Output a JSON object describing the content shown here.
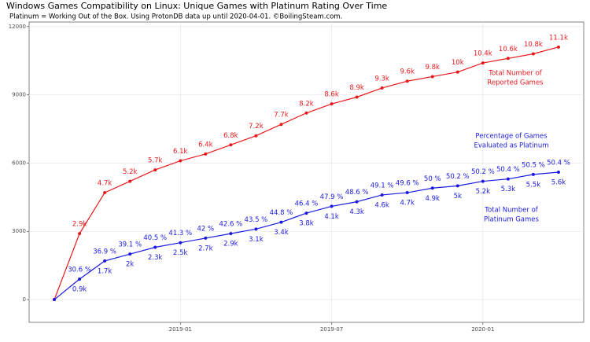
{
  "chart_data": {
    "type": "line",
    "title": "Windows Games Compatibility on Linux: Unique Games with Platinum Rating Over Time",
    "subtitle": "Platinum = Working Out of the Box. Using ProtonDB data up until 2020-04-01. ©BoilingSteam.com.",
    "x": [
      "2018-08",
      "2018-09",
      "2018-10",
      "2018-11",
      "2018-12",
      "2019-01",
      "2019-02",
      "2019-03",
      "2019-04",
      "2019-05",
      "2019-06",
      "2019-07",
      "2019-08",
      "2019-09",
      "2019-10",
      "2019-11",
      "2019-12",
      "2020-01",
      "2020-02",
      "2020-03",
      "2020-04"
    ],
    "xlim": [
      "2018-07",
      "2020-05"
    ],
    "xticks": [
      "2019-01",
      "2019-07",
      "2020-01"
    ],
    "ylim": [
      -1000,
      12200
    ],
    "yticks": [
      0,
      3000,
      6000,
      9000,
      12000
    ],
    "grid": true,
    "series": [
      {
        "name": "Total Number of Reported Games",
        "color": "#e8191c",
        "values": [
          0,
          2900,
          4700,
          5200,
          5700,
          6100,
          6400,
          6800,
          7200,
          7700,
          8200,
          8600,
          8900,
          9300,
          9600,
          9800,
          10000,
          10400,
          10600,
          10800,
          11100
        ],
        "value_labels": [
          null,
          "2.9k",
          "4.7k",
          "5.2k",
          "5.7k",
          "6.1k",
          "6.4k",
          "6.8k",
          "7.2k",
          "7.7k",
          "8.2k",
          "8.6k",
          "8.9k",
          "9.3k",
          "9.6k",
          "9.8k",
          "10k",
          "10.4k",
          "10.6k",
          "10.8k",
          "11.1k"
        ]
      },
      {
        "name": "Total Number of Platinum Games",
        "color": "#1a1adf",
        "values": [
          0,
          900,
          1700,
          2000,
          2300,
          2500,
          2700,
          2900,
          3100,
          3400,
          3800,
          4100,
          4300,
          4600,
          4700,
          4900,
          5000,
          5200,
          5300,
          5500,
          5600
        ],
        "value_labels": [
          null,
          "0.9k",
          "1.7k",
          "2k",
          "2.3k",
          "2.5k",
          "2.7k",
          "2.9k",
          "3.1k",
          "3.4k",
          "3.8k",
          "4.1k",
          "4.3k",
          "4.6k",
          "4.7k",
          "4.9k",
          "5k",
          "5.2k",
          "5.3k",
          "5.5k",
          "5.6k"
        ],
        "percentage_labels": [
          null,
          "30.6 %",
          "36.9 %",
          "39.1 %",
          "40.5 %",
          "41.3 %",
          "42 %",
          "42.6 %",
          "43.5 %",
          "44.8 %",
          "46.4 %",
          "47.9 %",
          "48.6 %",
          "49.1 %",
          "49.6 %",
          "50 %",
          "50.2 %",
          "50.2 %",
          "50.4 %",
          "50.5 %",
          "50.4 %"
        ]
      }
    ],
    "annotations": [
      {
        "lines": [
          "Total Number of",
          "Reported Games"
        ],
        "color": "#e8191c"
      },
      {
        "lines": [
          "Percentage of Games",
          "Evaluated as Platinum"
        ],
        "color": "#1a1adf"
      },
      {
        "lines": [
          "Total Number of",
          "Platinum Games"
        ],
        "color": "#1a1adf"
      }
    ]
  }
}
